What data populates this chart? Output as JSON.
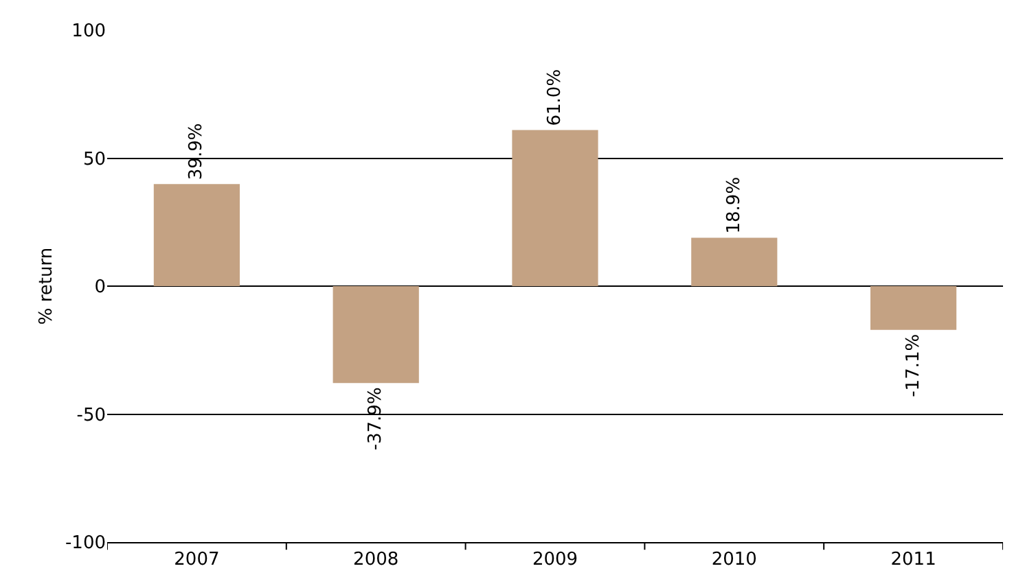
{
  "chart_data": {
    "type": "bar",
    "ylabel": "% return",
    "categories": [
      "2007",
      "2008",
      "2009",
      "2010",
      "2011"
    ],
    "values": [
      39.9,
      -37.9,
      61.0,
      18.9,
      -17.1
    ],
    "value_labels": [
      "39.9%",
      "-37.9%",
      "61.0%",
      "18.9%",
      "-17.1%"
    ],
    "color": "#c4a283",
    "ylim": [
      -100,
      100
    ],
    "yticks": [
      -100,
      -50,
      0,
      50,
      100
    ],
    "grid": "y",
    "legend": false
  }
}
